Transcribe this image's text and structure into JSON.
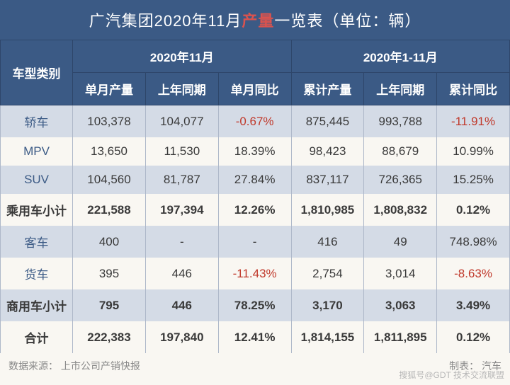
{
  "title_parts": {
    "pre": "广汽集团2020年11月",
    "highlight": "产量",
    "post": "一览表（单位：辆）"
  },
  "colors": {
    "header_bg": "#3b5a85",
    "header_border": "#2e466a",
    "stripe_dark": "#d4dbe6",
    "stripe_light": "#f9f7f2",
    "text": "#3a3a3a",
    "rowhead_text": "#3b5a85",
    "negative": "#c0392b",
    "title_highlight": "#d9534f",
    "source_text": "#888888"
  },
  "fonts": {
    "title_size": 22,
    "header_size": 17,
    "cell_size": 17,
    "source_size": 14
  },
  "header": {
    "category": "车型类别",
    "group_month": "2020年11月",
    "group_ytd": "2020年1-11月",
    "col1": "单月产量",
    "col2": "上年同期",
    "col3": "单月同比",
    "col4": "累计产量",
    "col5": "上年同期",
    "col6": "累计同比"
  },
  "rows": [
    {
      "name": "轿车",
      "type": "normal",
      "c1": "103,378",
      "c2": "104,077",
      "c3": "-0.67%",
      "c3neg": true,
      "c4": "875,445",
      "c5": "993,788",
      "c6": "-11.91%",
      "c6neg": true
    },
    {
      "name": "MPV",
      "type": "normal",
      "c1": "13,650",
      "c2": "11,530",
      "c3": "18.39%",
      "c3neg": false,
      "c4": "98,423",
      "c5": "88,679",
      "c6": "10.99%",
      "c6neg": false
    },
    {
      "name": "SUV",
      "type": "normal",
      "c1": "104,560",
      "c2": "81,787",
      "c3": "27.84%",
      "c3neg": false,
      "c4": "837,117",
      "c5": "726,365",
      "c6": "15.25%",
      "c6neg": false
    },
    {
      "name": "乘用车小计",
      "type": "subtotal",
      "c1": "221,588",
      "c2": "197,394",
      "c3": "12.26%",
      "c3neg": false,
      "c4": "1,810,985",
      "c5": "1,808,832",
      "c6": "0.12%",
      "c6neg": false
    },
    {
      "name": "客车",
      "type": "normal",
      "c1": "400",
      "c2": "-",
      "c3": "-",
      "c3neg": false,
      "c4": "416",
      "c5": "49",
      "c6": "748.98%",
      "c6neg": false
    },
    {
      "name": "货车",
      "type": "normal",
      "c1": "395",
      "c2": "446",
      "c3": "-11.43%",
      "c3neg": true,
      "c4": "2,754",
      "c5": "3,014",
      "c6": "-8.63%",
      "c6neg": true
    },
    {
      "name": "商用车小计",
      "type": "subtotal",
      "c1": "795",
      "c2": "446",
      "c3": "78.25%",
      "c3neg": false,
      "c4": "3,170",
      "c5": "3,063",
      "c6": "3.49%",
      "c6neg": false
    },
    {
      "name": "合计",
      "type": "total",
      "c1": "222,383",
      "c2": "197,840",
      "c3": "12.41%",
      "c3neg": false,
      "c4": "1,814,155",
      "c5": "1,811,895",
      "c6": "0.12%",
      "c6neg": false
    }
  ],
  "source": {
    "left_label": "数据来源：",
    "left_value": "上市公司产销快报",
    "right_label": "制表：",
    "right_value": "汽车"
  },
  "watermark": {
    "line1": "搜狐号@GDT 技术交流联盟"
  }
}
